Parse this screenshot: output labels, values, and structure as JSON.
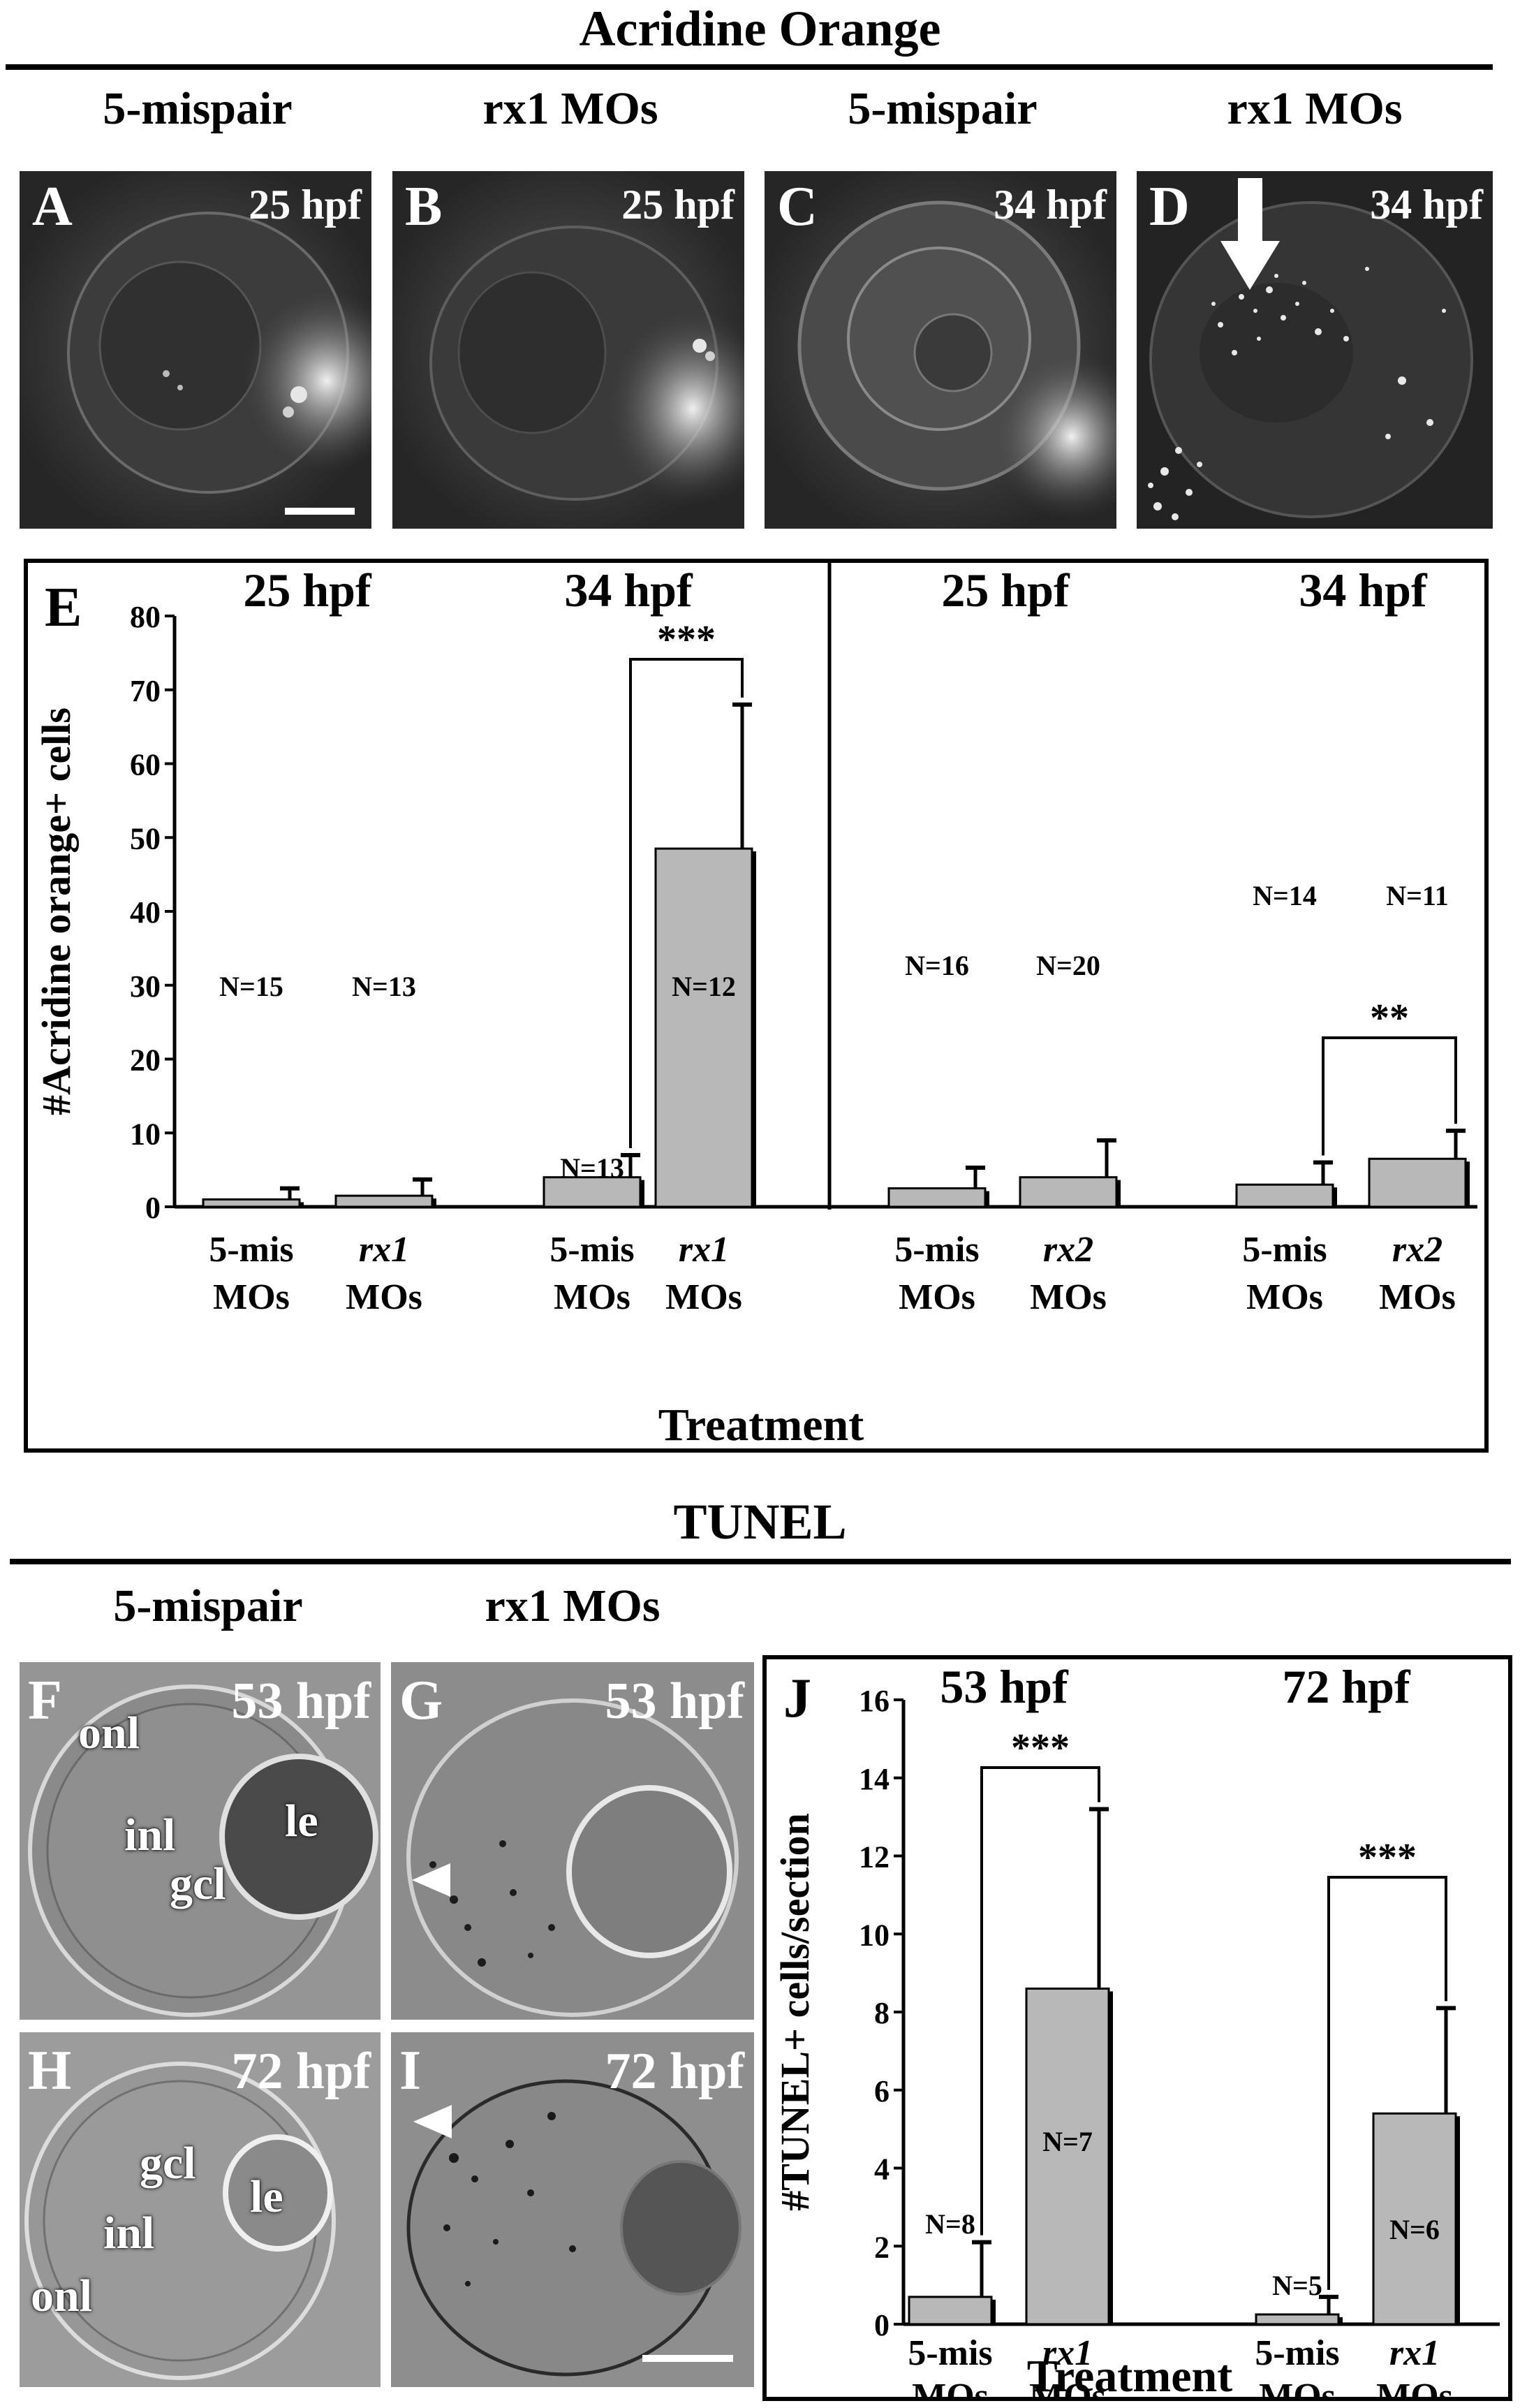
{
  "acridine": {
    "title": "Acridine Orange",
    "columns": [
      "5-mispair",
      "rx1 MOs",
      "5-mispair",
      "rx1 MOs"
    ],
    "panels": [
      {
        "letter": "A",
        "time": "25 hpf"
      },
      {
        "letter": "B",
        "time": "25 hpf"
      },
      {
        "letter": "C",
        "time": "34 hpf"
      },
      {
        "letter": "D",
        "time": "34 hpf"
      }
    ]
  },
  "tunel": {
    "title": "TUNEL",
    "columns": [
      "5-mispair",
      "rx1 MOs"
    ],
    "panels": [
      {
        "letter": "F",
        "time": "53 hpf",
        "labels": [
          "onl",
          "inl",
          "gcl",
          "le"
        ]
      },
      {
        "letter": "G",
        "time": "53 hpf"
      },
      {
        "letter": "H",
        "time": "72 hpf",
        "labels": [
          "gcl",
          "le",
          "inl",
          "onl"
        ]
      },
      {
        "letter": "I",
        "time": "72 hpf"
      }
    ]
  },
  "chart_data": [
    {
      "panel": "E",
      "type": "bar",
      "ylabel": "#Acridine orange+ cells",
      "xlabel": "Treatment",
      "ylim": [
        0,
        80
      ],
      "yticks": [
        0,
        10,
        20,
        30,
        40,
        50,
        60,
        70,
        80
      ],
      "group_titles": [
        "25 hpf",
        "34 hpf",
        "25 hpf",
        "34 hpf"
      ],
      "bars": [
        {
          "label": [
            "5-mis",
            "MOs"
          ],
          "value": 1,
          "error": 1.5,
          "n": "N=15"
        },
        {
          "label": [
            "rx1",
            "MOs"
          ],
          "value": 1.5,
          "error": 2.2,
          "n": "N=13"
        },
        {
          "label": [
            "5-mis",
            "MOs"
          ],
          "value": 4,
          "error": 3,
          "n": "N=13"
        },
        {
          "label": [
            "rx1",
            "MOs"
          ],
          "value": 48.5,
          "error": 19.5,
          "n": "N=12"
        },
        {
          "label": [
            "5-mis",
            "MOs"
          ],
          "value": 2.5,
          "error": 2.8,
          "n": "N=16"
        },
        {
          "label": [
            "rx2",
            "MOs"
          ],
          "value": 4,
          "error": 5,
          "n": "N=20"
        },
        {
          "label": [
            "5-mis",
            "MOs"
          ],
          "value": 3,
          "error": 3,
          "n": "N=14"
        },
        {
          "label": [
            "rx2",
            "MOs"
          ],
          "value": 6.5,
          "error": 3.8,
          "n": "N=11"
        }
      ],
      "significance": [
        {
          "bars": [
            2,
            3
          ],
          "text": "***"
        },
        {
          "bars": [
            6,
            7
          ],
          "text": "**"
        }
      ],
      "grid": false
    },
    {
      "panel": "J",
      "type": "bar",
      "ylabel": "#TUNEL+ cells/section",
      "xlabel": "Treatment",
      "ylim": [
        0,
        16
      ],
      "yticks": [
        0,
        2,
        4,
        6,
        8,
        10,
        12,
        14,
        16
      ],
      "group_titles": [
        "53 hpf",
        "72 hpf"
      ],
      "bars": [
        {
          "label": [
            "5-mis",
            "MOs"
          ],
          "value": 0.7,
          "error": 1.4,
          "n": "N=8"
        },
        {
          "label": [
            "rx1",
            "MOs"
          ],
          "value": 8.6,
          "error": 4.6,
          "n": "N=7"
        },
        {
          "label": [
            "5-mis",
            "MOs"
          ],
          "value": 0.25,
          "error": 0.45,
          "n": "N=5"
        },
        {
          "label": [
            "rx1",
            "MOs"
          ],
          "value": 5.4,
          "error": 2.7,
          "n": "N=6"
        }
      ],
      "significance": [
        {
          "bars": [
            0,
            1
          ],
          "text": "***"
        },
        {
          "bars": [
            2,
            3
          ],
          "text": "***"
        }
      ],
      "grid": false
    }
  ]
}
